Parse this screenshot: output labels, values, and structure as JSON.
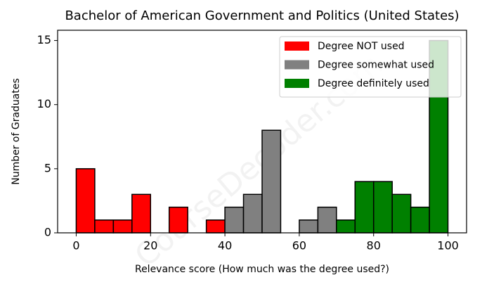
{
  "chart_data": {
    "type": "histogram",
    "title": "Bachelor of American Government and Politics (United States)",
    "xlabel": "Relevance score (How much was the degree used?)",
    "ylabel": "Number of Graduates",
    "watermark": "CourseDecoder.com",
    "bins": [
      0,
      5,
      10,
      15,
      20,
      25,
      30,
      35,
      40,
      45,
      50,
      55,
      60,
      65,
      70,
      75,
      80,
      85,
      90,
      95,
      100
    ],
    "series": [
      {
        "name": "Degree NOT used",
        "color": "#ff0000",
        "values": [
          5,
          1,
          1,
          3,
          0,
          2,
          0,
          1,
          0,
          0,
          0,
          0,
          0,
          0,
          0,
          0,
          0,
          0,
          0,
          0
        ]
      },
      {
        "name": "Degree somewhat used",
        "color": "#808080",
        "values": [
          0,
          0,
          0,
          0,
          0,
          0,
          0,
          0,
          2,
          3,
          8,
          0,
          1,
          2,
          0,
          0,
          0,
          0,
          0,
          0
        ]
      },
      {
        "name": "Degree definitely used",
        "color": "#008000",
        "values": [
          0,
          0,
          0,
          0,
          0,
          0,
          0,
          0,
          0,
          0,
          0,
          0,
          0,
          0,
          1,
          4,
          4,
          3,
          2,
          15
        ]
      }
    ],
    "xlim": [
      -5,
      105
    ],
    "ylim": [
      0,
      15.8
    ],
    "xticks": [
      0,
      20,
      40,
      60,
      80,
      100
    ],
    "yticks": [
      0,
      5,
      10,
      15
    ],
    "grid": false,
    "legend": "upper right"
  }
}
